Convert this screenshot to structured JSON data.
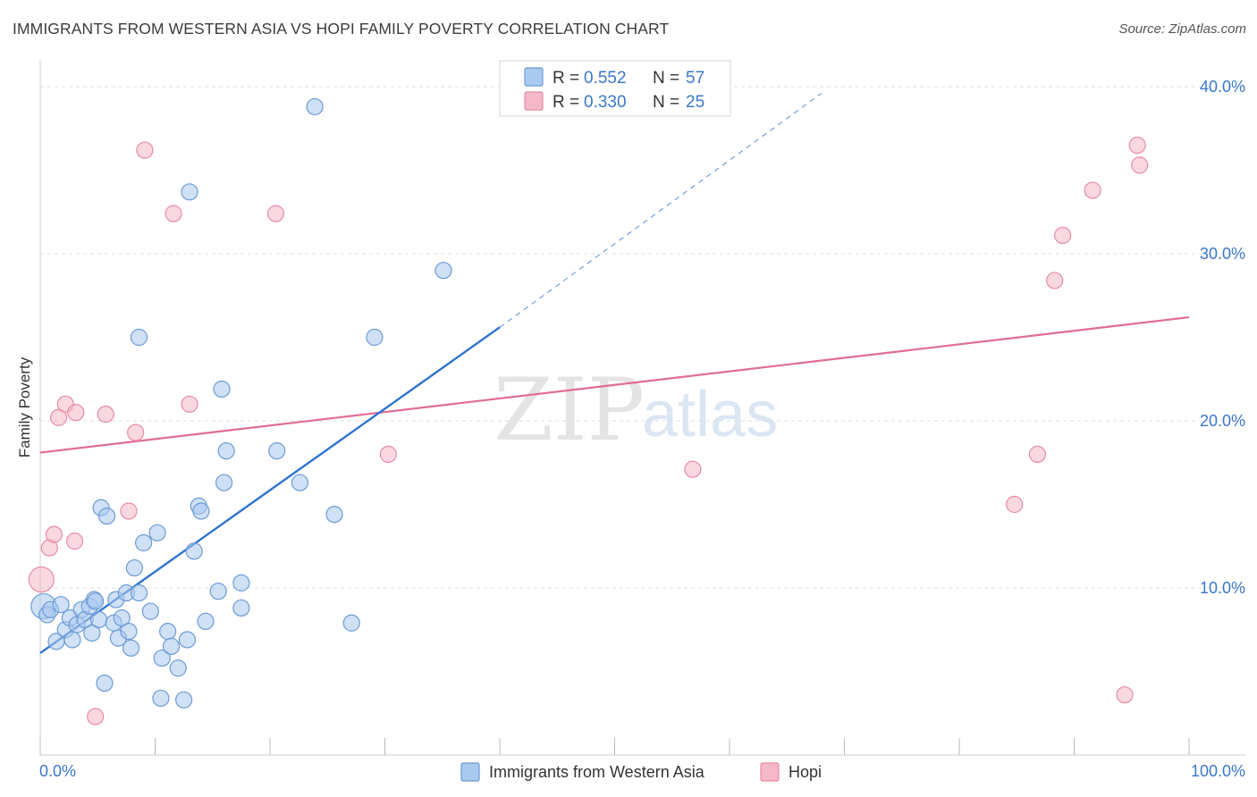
{
  "header": {
    "title": "IMMIGRANTS FROM WESTERN ASIA VS HOPI FAMILY POVERTY CORRELATION CHART",
    "source": "Source: ZipAtlas.com"
  },
  "watermark": {
    "zip": "ZIP",
    "atlas": "atlas"
  },
  "legend": {
    "rows": [
      {
        "r_label": "R =",
        "r_value": "0.552",
        "n_label": "N =",
        "n_value": "57",
        "color": "#a9c9ef"
      },
      {
        "r_label": "R =",
        "r_value": "0.330",
        "n_label": "N =",
        "n_value": "25",
        "color": "#f4b8c8"
      }
    ]
  },
  "chart_data": {
    "type": "scatter",
    "title": "IMMIGRANTS FROM WESTERN ASIA VS HOPI FAMILY POVERTY CORRELATION CHART",
    "xlabel": "",
    "ylabel": "Family Poverty",
    "xlim": [
      0,
      100
    ],
    "ylim": [
      0,
      40
    ],
    "x_tick_labels": [
      "0.0%",
      "100.0%"
    ],
    "y_ticks": [
      10,
      20,
      30,
      40
    ],
    "y_tick_labels": [
      "10.0%",
      "20.0%",
      "30.0%",
      "40.0%"
    ],
    "grid": true,
    "legend_position": "top-center",
    "series": [
      {
        "name": "Immigrants from Western Asia",
        "color": "#a9c9ef",
        "stroke": "#6b9bd6",
        "line_color": "#2f74d0",
        "trend": {
          "x0": 0,
          "y0": 6.1,
          "x1": 40,
          "y1": 25.6,
          "dash_to_x": 68,
          "dash_to_y": 39.6
        },
        "points": [
          [
            0.3,
            8.9
          ],
          [
            0.6,
            8.4
          ],
          [
            0.9,
            8.7
          ],
          [
            1.4,
            6.8
          ],
          [
            1.8,
            9.0
          ],
          [
            2.2,
            7.5
          ],
          [
            2.6,
            8.2
          ],
          [
            2.8,
            6.9
          ],
          [
            3.2,
            7.8
          ],
          [
            3.6,
            8.7
          ],
          [
            3.9,
            8.1
          ],
          [
            4.3,
            8.9
          ],
          [
            4.5,
            7.3
          ],
          [
            4.7,
            9.3
          ],
          [
            5.1,
            8.1
          ],
          [
            5.3,
            14.8
          ],
          [
            5.6,
            4.3
          ],
          [
            5.8,
            14.3
          ],
          [
            6.4,
            7.9
          ],
          [
            6.6,
            9.3
          ],
          [
            6.8,
            7.0
          ],
          [
            7.1,
            8.2
          ],
          [
            7.5,
            9.7
          ],
          [
            7.7,
            7.4
          ],
          [
            7.9,
            6.4
          ],
          [
            8.2,
            11.2
          ],
          [
            8.6,
            9.7
          ],
          [
            9.0,
            12.7
          ],
          [
            9.6,
            8.6
          ],
          [
            10.2,
            13.3
          ],
          [
            10.5,
            3.4
          ],
          [
            10.6,
            5.8
          ],
          [
            11.1,
            7.4
          ],
          [
            11.4,
            6.5
          ],
          [
            12.0,
            5.2
          ],
          [
            12.5,
            3.3
          ],
          [
            12.8,
            6.9
          ],
          [
            13.0,
            33.7
          ],
          [
            13.4,
            12.2
          ],
          [
            13.8,
            14.9
          ],
          [
            14.0,
            14.6
          ],
          [
            14.4,
            8.0
          ],
          [
            15.5,
            9.8
          ],
          [
            15.8,
            21.9
          ],
          [
            16.0,
            16.3
          ],
          [
            16.2,
            18.2
          ],
          [
            17.5,
            10.3
          ],
          [
            17.5,
            8.8
          ],
          [
            20.6,
            18.2
          ],
          [
            22.6,
            16.3
          ],
          [
            23.9,
            38.8
          ],
          [
            25.6,
            14.4
          ],
          [
            27.1,
            7.9
          ],
          [
            29.1,
            25.0
          ],
          [
            35.1,
            29.0
          ],
          [
            8.6,
            25.0
          ],
          [
            4.8,
            9.2
          ]
        ],
        "point_radius": [
          14,
          9,
          9,
          9,
          9,
          9,
          9,
          9,
          9,
          9,
          9,
          9,
          9,
          9,
          9,
          9,
          9,
          9,
          9,
          9,
          9,
          9,
          9,
          9,
          9,
          9,
          9,
          9,
          9,
          9,
          9,
          9,
          9,
          9,
          9,
          9,
          9,
          9,
          9,
          9,
          9,
          9,
          9,
          9,
          9,
          9,
          9,
          9,
          9,
          9,
          9,
          9,
          9,
          9,
          9,
          9,
          9
        ]
      },
      {
        "name": "Hopi",
        "color": "#f4b8c8",
        "stroke": "#e88aa6",
        "line_color": "#e06c95",
        "trend": {
          "x0": 0,
          "y0": 18.1,
          "x1": 100,
          "y1": 26.2
        },
        "points": [
          [
            0.1,
            10.5
          ],
          [
            0.8,
            12.4
          ],
          [
            1.2,
            13.2
          ],
          [
            1.6,
            20.2
          ],
          [
            2.2,
            21.0
          ],
          [
            3.0,
            12.8
          ],
          [
            3.1,
            20.5
          ],
          [
            4.8,
            2.3
          ],
          [
            5.7,
            20.4
          ],
          [
            7.7,
            14.6
          ],
          [
            8.3,
            19.3
          ],
          [
            9.1,
            36.2
          ],
          [
            11.6,
            32.4
          ],
          [
            13.0,
            21.0
          ],
          [
            20.5,
            32.4
          ],
          [
            30.3,
            18.0
          ],
          [
            56.8,
            17.1
          ],
          [
            84.8,
            15.0
          ],
          [
            86.8,
            18.0
          ],
          [
            88.3,
            28.4
          ],
          [
            89.0,
            31.1
          ],
          [
            91.6,
            33.8
          ],
          [
            94.4,
            3.6
          ],
          [
            95.5,
            36.5
          ],
          [
            95.7,
            35.3
          ]
        ],
        "point_radius": [
          14,
          9,
          9,
          9,
          9,
          9,
          9,
          9,
          9,
          9,
          9,
          9,
          9,
          9,
          9,
          9,
          9,
          9,
          9,
          9,
          9,
          9,
          9,
          9,
          9
        ]
      }
    ]
  }
}
